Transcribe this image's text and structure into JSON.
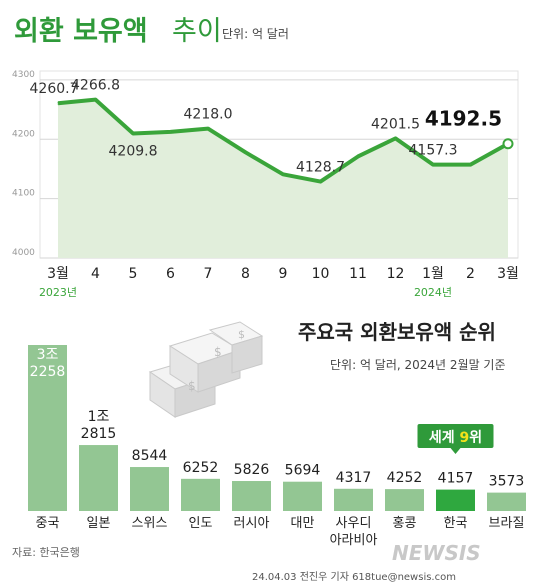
{
  "header": {
    "title_bold": "외환 보유액",
    "title_light": "추이",
    "unit": "단위: 억 달러"
  },
  "colors": {
    "accent_green": "#3aa53a",
    "area_fill": "#e1eedb",
    "bar_green": "#93c693",
    "korea_bar": "#2fa83f",
    "label_box": "#2f9a3a",
    "highlight_text": "#f4e21a"
  },
  "chart_data": [
    {
      "type": "area",
      "title": "외환 보유액 추이",
      "unit": "단위: 억 달러",
      "categories": [
        "3월",
        "4",
        "5",
        "6",
        "7",
        "8",
        "9",
        "10",
        "11",
        "12",
        "1월",
        "2",
        "3월"
      ],
      "year_labels": [
        "2023년",
        "2024년"
      ],
      "values": [
        4260.7,
        4266.8,
        4209.8,
        4212.5,
        4218.0,
        4178.0,
        4141.0,
        4128.7,
        4171.0,
        4201.5,
        4157.3,
        4157.3,
        4192.5
      ],
      "value_labels": [
        "4260.7",
        "4266.8",
        "4209.8",
        "",
        "4218.0",
        "",
        "",
        "4128.7",
        "",
        "4201.5",
        "4157.3",
        "",
        "4192.5"
      ],
      "y_ticks": [
        "4000",
        "4100",
        "4200",
        "4300"
      ],
      "ylim": [
        4000,
        4315
      ],
      "grid": true
    },
    {
      "type": "bar",
      "title": "주요국 외환보유액 순위",
      "unit": "단위: 억 달러, 2024년 2월말 기준",
      "categories": [
        "중국",
        "일본",
        "스위스",
        "인도",
        "러시아",
        "대만",
        "사우디\n아라비아",
        "홍콩",
        "한국",
        "브라질"
      ],
      "values": [
        32258,
        12815,
        8544,
        6252,
        5826,
        5694,
        4317,
        4252,
        4157,
        3573
      ],
      "value_labels": [
        "3조\n2258",
        "1조\n2815",
        "8544",
        "6252",
        "5826",
        "5694",
        "4317",
        "4252",
        "4157",
        "3573"
      ],
      "highlight": {
        "index": 8,
        "label_prefix": "세계 ",
        "rank": "9",
        "label_suffix": "위"
      }
    }
  ],
  "footer": {
    "source": "자료: 한국은행",
    "credit": "24.04.03 전진우 기자 618tue@newsis.com",
    "watermark": "NEWSIS"
  }
}
